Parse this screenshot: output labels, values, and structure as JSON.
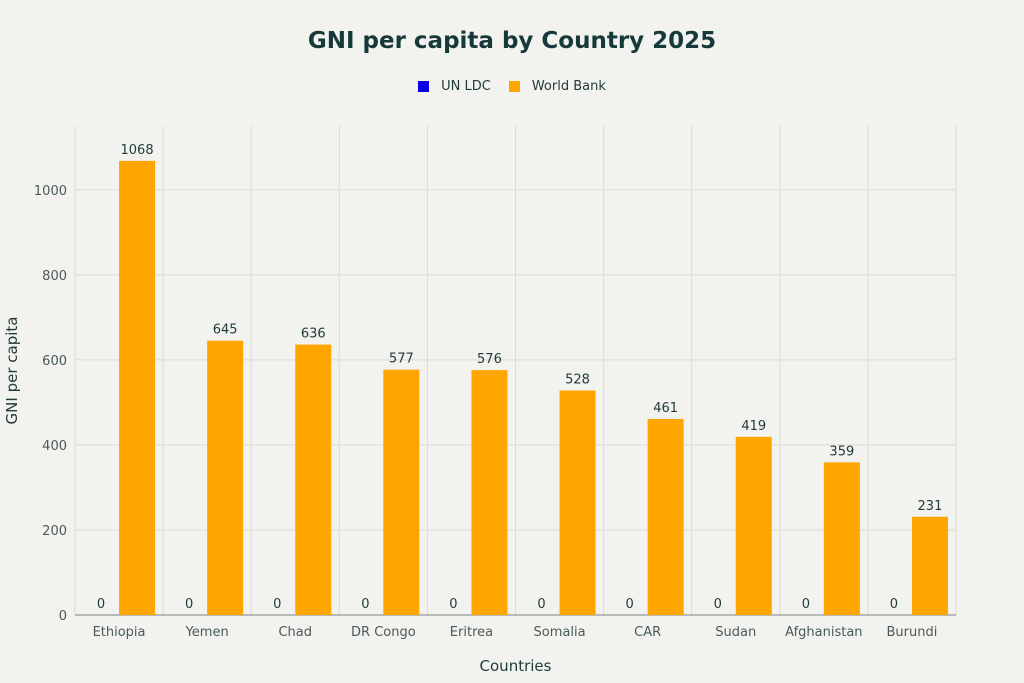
{
  "chart_data": {
    "type": "bar",
    "title": "GNI per capita by Country 2025",
    "xlabel": "Countries",
    "ylabel": "GNI per capita",
    "categories": [
      "Ethiopia",
      "Yemen",
      "Chad",
      "DR Congo",
      "Eritrea",
      "Somalia",
      "CAR",
      "Sudan",
      "Afghanistan",
      "Burundi"
    ],
    "series": [
      {
        "name": "UN LDC",
        "color": "#0a00e0",
        "values": [
          0,
          0,
          0,
          0,
          0,
          0,
          0,
          0,
          0,
          0
        ]
      },
      {
        "name": "World Bank",
        "color": "#ffa500",
        "values": [
          1068,
          645,
          636,
          577,
          576,
          528,
          461,
          419,
          359,
          231
        ]
      }
    ],
    "ylim": [
      0,
      1150
    ],
    "yticks": [
      0,
      200,
      400,
      600,
      800,
      1000
    ],
    "grid": true,
    "legend_position": "top-center"
  }
}
